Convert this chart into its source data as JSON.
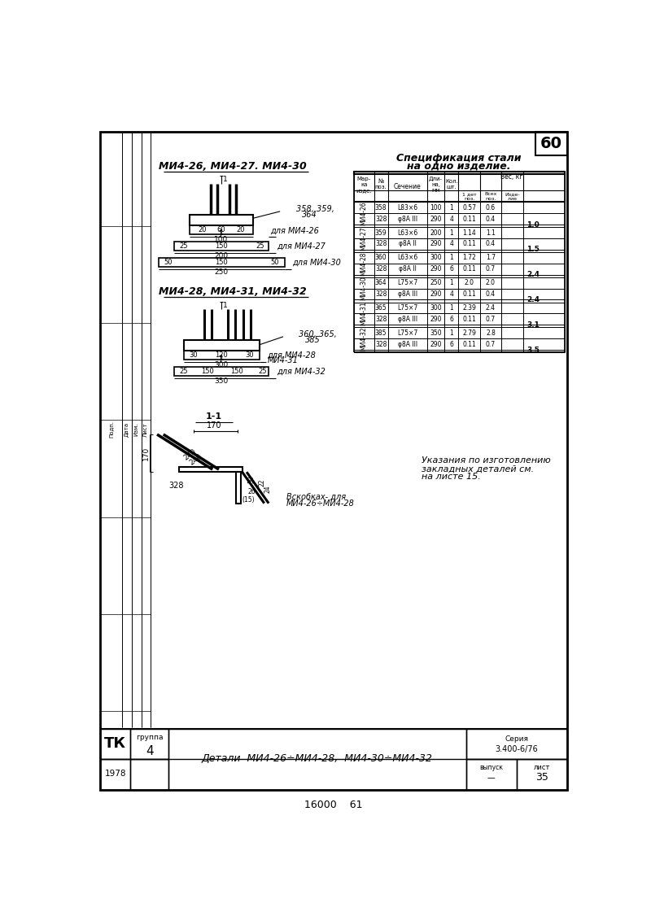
{
  "page_num": "60",
  "bg_color": "#ffffff",
  "line_color": "#000000",
  "groups_top": [
    {
      "mark": "МИ4-26",
      "pos1": "358",
      "sec1": "L83×6",
      "len1": "100",
      "qty1": "1",
      "w1a": "0.57",
      "w1b": "0.6",
      "wtot": "1.0",
      "pos2": "328",
      "sec2": "φ8A III",
      "len2": "290",
      "qty2": "4",
      "w2a": "0.11",
      "w2b": "0.4"
    },
    {
      "mark": "МИ4-27",
      "pos1": "359",
      "sec1": "L63×6",
      "len1": "200",
      "qty1": "1",
      "w1a": "1.14",
      "w1b": "1.1",
      "wtot": "1.5",
      "pos2": "328",
      "sec2": "φ8A II",
      "len2": "290",
      "qty2": "4",
      "w2a": "0.11",
      "w2b": "0.4"
    },
    {
      "mark": "МИ4-28",
      "pos1": "360",
      "sec1": "L63×6",
      "len1": "300",
      "qty1": "1",
      "w1a": "1.72",
      "w1b": "1.7",
      "wtot": "2.4",
      "pos2": "328",
      "sec2": "φ8A II",
      "len2": "290",
      "qty2": "6",
      "w2a": "0.11",
      "w2b": "0.7"
    },
    {
      "mark": "МИ4-30",
      "pos1": "364",
      "sec1": "L75×7",
      "len1": "250",
      "qty1": "1",
      "w1a": "2.0",
      "w1b": "2.0",
      "wtot": "2.4",
      "pos2": "328",
      "sec2": "φ8A III",
      "len2": "290",
      "qty2": "4",
      "w2a": "0.11",
      "w2b": "0.4"
    },
    {
      "mark": "МИ4-31",
      "pos1": "365",
      "sec1": "L75×7",
      "len1": "300",
      "qty1": "1",
      "w1a": "2.39",
      "w1b": "2.4",
      "wtot": "3.1",
      "pos2": "328",
      "sec2": "φ8A III",
      "len2": "290",
      "qty2": "6",
      "w2a": "0.11",
      "w2b": "0.7"
    },
    {
      "mark": "МИ4-32",
      "pos1": "385",
      "sec1": "L75×7",
      "len1": "350",
      "qty1": "1",
      "w1a": "2.79",
      "w1b": "2.8",
      "wtot": "3.5",
      "pos2": "328",
      "sec2": "φ8A III",
      "len2": "290",
      "qty2": "6",
      "w2a": "0.11",
      "w2b": "0.7"
    }
  ]
}
